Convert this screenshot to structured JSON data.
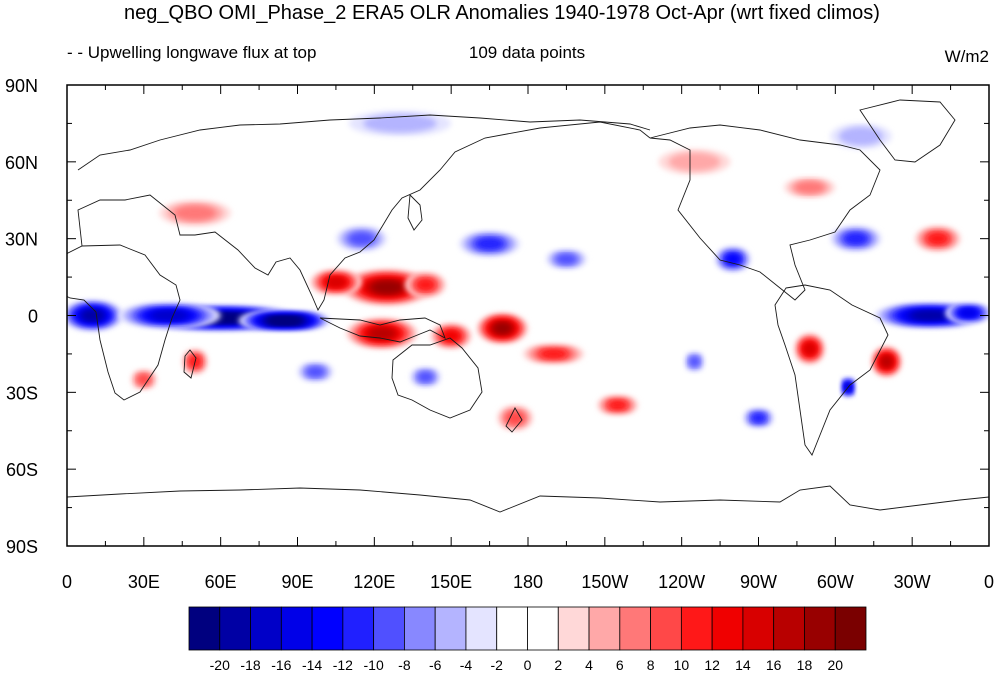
{
  "title": "neg_QBO OMI_Phase_2 ERA5 OLR Anomalies 1940-1978 Oct-Apr (wrt fixed climos)",
  "subtitle_left": "- - Upwelling longwave flux at top",
  "subtitle_center": "109 data points",
  "units": "W/m2",
  "chart_data": {
    "type": "heatmap",
    "projection": "cylindrical-equidistant",
    "lon_range": [
      0,
      360
    ],
    "lat_range": [
      -90,
      90
    ],
    "lon_ticks": [
      {
        "value": 0,
        "label": "0"
      },
      {
        "value": 30,
        "label": "30E"
      },
      {
        "value": 60,
        "label": "60E"
      },
      {
        "value": 90,
        "label": "90E"
      },
      {
        "value": 120,
        "label": "120E"
      },
      {
        "value": 150,
        "label": "150E"
      },
      {
        "value": 180,
        "label": "180"
      },
      {
        "value": 210,
        "label": "150W"
      },
      {
        "value": 240,
        "label": "120W"
      },
      {
        "value": 270,
        "label": "90W"
      },
      {
        "value": 300,
        "label": "60W"
      },
      {
        "value": 330,
        "label": "30W"
      },
      {
        "value": 360,
        "label": "0"
      }
    ],
    "lat_ticks": [
      {
        "value": 90,
        "label": "90N"
      },
      {
        "value": 60,
        "label": "60N"
      },
      {
        "value": 30,
        "label": "30N"
      },
      {
        "value": 0,
        "label": "0"
      },
      {
        "value": -30,
        "label": "30S"
      },
      {
        "value": -60,
        "label": "60S"
      },
      {
        "value": -90,
        "label": "90S"
      }
    ],
    "colorbar": {
      "labels": [
        "-20",
        "-18",
        "-16",
        "-14",
        "-12",
        "-10",
        "-8",
        "-6",
        "-4",
        "-2",
        "0",
        "2",
        "4",
        "6",
        "8",
        "10",
        "12",
        "14",
        "16",
        "18",
        "20"
      ],
      "colors": [
        "#00007f",
        "#0000a4",
        "#0000c8",
        "#0000e8",
        "#0000ff",
        "#2020ff",
        "#5050ff",
        "#8888ff",
        "#b4b4ff",
        "#e4e4ff",
        "#ffffff",
        "#ffffff",
        "#ffd8d8",
        "#ffa8a8",
        "#ff7878",
        "#ff4848",
        "#ff1818",
        "#f00000",
        "#d80000",
        "#b80000",
        "#980000",
        "#7a0000"
      ]
    },
    "anomalies": [
      {
        "lon": 60,
        "lat": -1,
        "rlon": 32,
        "rlat": 5,
        "value": -22
      },
      {
        "lon": 85,
        "lat": -2,
        "rlon": 18,
        "rlat": 4,
        "value": -24
      },
      {
        "lon": 10,
        "lat": 0,
        "rlon": 12,
        "rlat": 6,
        "value": -18
      },
      {
        "lon": 40,
        "lat": 0,
        "rlon": 20,
        "rlat": 5,
        "value": -16
      },
      {
        "lon": 337,
        "lat": 0,
        "rlon": 22,
        "rlat": 5,
        "value": -18
      },
      {
        "lon": 352,
        "lat": 1,
        "rlon": 9,
        "rlat": 4,
        "value": -14
      },
      {
        "lon": 125,
        "lat": 11,
        "rlon": 18,
        "rlat": 7,
        "value": 18
      },
      {
        "lon": 105,
        "lat": 13,
        "rlon": 10,
        "rlat": 5,
        "value": 14
      },
      {
        "lon": 140,
        "lat": 12,
        "rlon": 8,
        "rlat": 5,
        "value": 10
      },
      {
        "lon": 123,
        "lat": -7,
        "rlon": 14,
        "rlat": 6,
        "value": 16
      },
      {
        "lon": 170,
        "lat": -5,
        "rlon": 10,
        "rlat": 6,
        "value": 18
      },
      {
        "lon": 150,
        "lat": -8,
        "rlon": 8,
        "rlat": 5,
        "value": 12
      },
      {
        "lon": 190,
        "lat": -15,
        "rlon": 12,
        "rlat": 4,
        "value": 10
      },
      {
        "lon": 115,
        "lat": 30,
        "rlon": 10,
        "rlat": 5,
        "value": -8
      },
      {
        "lon": 165,
        "lat": 28,
        "rlon": 12,
        "rlat": 5,
        "value": -10
      },
      {
        "lon": 195,
        "lat": 22,
        "rlon": 8,
        "rlat": 4,
        "value": -8
      },
      {
        "lon": 260,
        "lat": 22,
        "rlon": 7,
        "rlat": 5,
        "value": -12
      },
      {
        "lon": 308,
        "lat": 30,
        "rlon": 10,
        "rlat": 5,
        "value": -10
      },
      {
        "lon": 340,
        "lat": 30,
        "rlon": 9,
        "rlat": 5,
        "value": 10
      },
      {
        "lon": 290,
        "lat": -13,
        "rlon": 6,
        "rlat": 6,
        "value": 14
      },
      {
        "lon": 320,
        "lat": -18,
        "rlon": 6,
        "rlat": 6,
        "value": 16
      },
      {
        "lon": 305,
        "lat": -28,
        "rlon": 3,
        "rlat": 4,
        "value": -16
      },
      {
        "lon": 30,
        "lat": -25,
        "rlon": 5,
        "rlat": 4,
        "value": 8
      },
      {
        "lon": 50,
        "lat": -18,
        "rlon": 5,
        "rlat": 5,
        "value": 10
      },
      {
        "lon": 97,
        "lat": -22,
        "rlon": 7,
        "rlat": 4,
        "value": -8
      },
      {
        "lon": 140,
        "lat": -24,
        "rlon": 6,
        "rlat": 4,
        "value": -8
      },
      {
        "lon": 215,
        "lat": -35,
        "rlon": 8,
        "rlat": 4,
        "value": 10
      },
      {
        "lon": 245,
        "lat": -18,
        "rlon": 4,
        "rlat": 4,
        "value": -8
      },
      {
        "lon": 270,
        "lat": -40,
        "rlon": 6,
        "rlat": 4,
        "value": -10
      },
      {
        "lon": 175,
        "lat": -40,
        "rlon": 7,
        "rlat": 5,
        "value": 8
      },
      {
        "lon": 50,
        "lat": 40,
        "rlon": 14,
        "rlat": 5,
        "value": 6
      },
      {
        "lon": 245,
        "lat": 60,
        "rlon": 14,
        "rlat": 5,
        "value": 4
      },
      {
        "lon": 290,
        "lat": 50,
        "rlon": 10,
        "rlat": 4,
        "value": 6
      },
      {
        "lon": 130,
        "lat": 75,
        "rlon": 20,
        "rlat": 5,
        "value": -4
      },
      {
        "lon": 310,
        "lat": 70,
        "rlon": 12,
        "rlat": 5,
        "value": -4
      }
    ]
  }
}
